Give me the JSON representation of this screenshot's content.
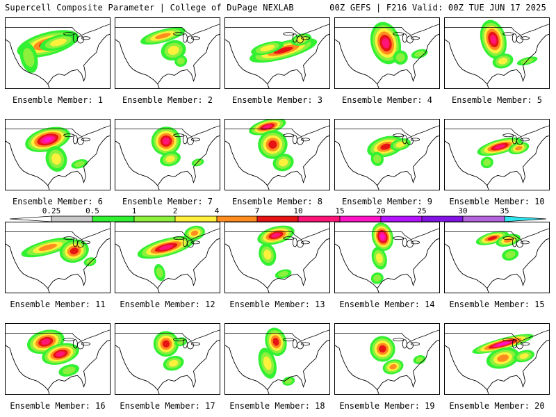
{
  "header": {
    "title": "Supercell Composite Parameter | College of DuPage NEXLAB",
    "run_info": "00Z GEFS | F216 Valid: 00Z TUE JUN 17 2025"
  },
  "colorbar": {
    "ticks": [
      "0.25",
      "0.5",
      "1",
      "2",
      "4",
      "7",
      "10",
      "15",
      "20",
      "25",
      "30",
      "35"
    ],
    "colors": [
      "#ffffff",
      "#c8c8c8",
      "#32f032",
      "#8cf03c",
      "#fff03c",
      "#ff8c1e",
      "#e61414",
      "#ff1478",
      "#ff14c8",
      "#b414ff",
      "#8214e6",
      "#b464dc",
      "#32e6f0"
    ]
  },
  "members": [
    {
      "label": "Ensemble Member: 1",
      "blobs": [
        [
          0.4,
          0.36,
          0.3,
          0.16,
          5
        ],
        [
          0.22,
          0.55,
          0.08,
          0.22,
          2
        ],
        [
          0.5,
          0.34,
          0.18,
          0.1,
          3
        ]
      ]
    },
    {
      "label": "Ensemble Member: 2",
      "blobs": [
        [
          0.45,
          0.25,
          0.22,
          0.09,
          4
        ],
        [
          0.55,
          0.45,
          0.12,
          0.14,
          3
        ],
        [
          0.62,
          0.6,
          0.06,
          0.08,
          2
        ]
      ]
    },
    {
      "label": "Ensemble Member: 3",
      "blobs": [
        [
          0.55,
          0.45,
          0.33,
          0.12,
          5
        ],
        [
          0.4,
          0.42,
          0.16,
          0.08,
          3
        ],
        [
          0.72,
          0.3,
          0.1,
          0.08,
          3
        ]
      ]
    },
    {
      "label": "Ensemble Member: 4",
      "blobs": [
        [
          0.48,
          0.35,
          0.14,
          0.3,
          6
        ],
        [
          0.62,
          0.55,
          0.07,
          0.1,
          2
        ],
        [
          0.8,
          0.5,
          0.08,
          0.06,
          2
        ]
      ]
    },
    {
      "label": "Ensemble Member: 5",
      "blobs": [
        [
          0.46,
          0.3,
          0.12,
          0.28,
          6
        ],
        [
          0.55,
          0.6,
          0.1,
          0.1,
          3
        ],
        [
          0.78,
          0.6,
          0.1,
          0.05,
          2
        ]
      ]
    },
    {
      "label": "Ensemble Member: 6",
      "blobs": [
        [
          0.4,
          0.28,
          0.22,
          0.16,
          7
        ],
        [
          0.48,
          0.55,
          0.1,
          0.18,
          3
        ],
        [
          0.7,
          0.62,
          0.08,
          0.06,
          2
        ]
      ]
    },
    {
      "label": "Ensemble Member: 7",
      "blobs": [
        [
          0.48,
          0.3,
          0.14,
          0.2,
          6
        ],
        [
          0.52,
          0.55,
          0.1,
          0.1,
          3
        ],
        [
          0.78,
          0.6,
          0.06,
          0.05,
          2
        ]
      ]
    },
    {
      "label": "Ensemble Member: 8",
      "blobs": [
        [
          0.4,
          0.1,
          0.18,
          0.1,
          6
        ],
        [
          0.45,
          0.35,
          0.14,
          0.2,
          5
        ],
        [
          0.55,
          0.6,
          0.1,
          0.12,
          3
        ]
      ]
    },
    {
      "label": "Ensemble Member: 9",
      "blobs": [
        [
          0.48,
          0.38,
          0.18,
          0.14,
          5
        ],
        [
          0.62,
          0.35,
          0.1,
          0.08,
          3
        ],
        [
          0.4,
          0.55,
          0.06,
          0.1,
          2
        ]
      ]
    },
    {
      "label": "Ensemble Member: 10",
      "blobs": [
        [
          0.52,
          0.38,
          0.22,
          0.1,
          6
        ],
        [
          0.7,
          0.4,
          0.1,
          0.08,
          4
        ],
        [
          0.4,
          0.6,
          0.06,
          0.08,
          2
        ]
      ]
    },
    {
      "label": "Ensemble Member: 11",
      "blobs": [
        [
          0.4,
          0.35,
          0.26,
          0.1,
          4
        ],
        [
          0.65,
          0.4,
          0.14,
          0.16,
          5
        ],
        [
          0.8,
          0.55,
          0.06,
          0.06,
          2
        ]
      ]
    },
    {
      "label": "Ensemble Member: 12",
      "blobs": [
        [
          0.48,
          0.35,
          0.28,
          0.12,
          6
        ],
        [
          0.75,
          0.15,
          0.1,
          0.1,
          4
        ],
        [
          0.42,
          0.7,
          0.05,
          0.12,
          2
        ]
      ]
    },
    {
      "label": "Ensemble Member: 13",
      "blobs": [
        [
          0.48,
          0.18,
          0.18,
          0.12,
          6
        ],
        [
          0.4,
          0.45,
          0.08,
          0.16,
          3
        ],
        [
          0.55,
          0.72,
          0.08,
          0.06,
          2
        ]
      ]
    },
    {
      "label": "Ensemble Member: 14",
      "blobs": [
        [
          0.45,
          0.2,
          0.1,
          0.2,
          7
        ],
        [
          0.42,
          0.5,
          0.07,
          0.16,
          3
        ],
        [
          0.4,
          0.78,
          0.06,
          0.08,
          2
        ]
      ]
    },
    {
      "label": "Ensemble Member: 15",
      "blobs": [
        [
          0.45,
          0.22,
          0.16,
          0.08,
          5
        ],
        [
          0.6,
          0.25,
          0.12,
          0.08,
          4
        ],
        [
          0.62,
          0.45,
          0.08,
          0.08,
          2
        ]
      ]
    },
    {
      "label": "Ensemble Member: 16",
      "blobs": [
        [
          0.38,
          0.25,
          0.18,
          0.16,
          6
        ],
        [
          0.52,
          0.42,
          0.18,
          0.14,
          6
        ],
        [
          0.6,
          0.65,
          0.1,
          0.08,
          2
        ]
      ]
    },
    {
      "label": "Ensemble Member: 17",
      "blobs": [
        [
          0.48,
          0.28,
          0.12,
          0.18,
          5
        ],
        [
          0.55,
          0.55,
          0.1,
          0.1,
          3
        ],
        [
          0.62,
          0.25,
          0.06,
          0.06,
          2
        ]
      ]
    },
    {
      "label": "Ensemble Member: 18",
      "blobs": [
        [
          0.48,
          0.25,
          0.1,
          0.2,
          5
        ],
        [
          0.4,
          0.55,
          0.08,
          0.22,
          3
        ],
        [
          0.6,
          0.8,
          0.06,
          0.06,
          2
        ]
      ]
    },
    {
      "label": "Ensemble Member: 19",
      "blobs": [
        [
          0.45,
          0.35,
          0.12,
          0.18,
          5
        ],
        [
          0.55,
          0.6,
          0.1,
          0.1,
          4
        ],
        [
          0.8,
          0.5,
          0.06,
          0.06,
          2
        ]
      ]
    },
    {
      "label": "Ensemble Member: 20",
      "blobs": [
        [
          0.55,
          0.28,
          0.3,
          0.08,
          7
        ],
        [
          0.55,
          0.48,
          0.16,
          0.14,
          4
        ],
        [
          0.75,
          0.45,
          0.1,
          0.08,
          3
        ]
      ]
    }
  ]
}
